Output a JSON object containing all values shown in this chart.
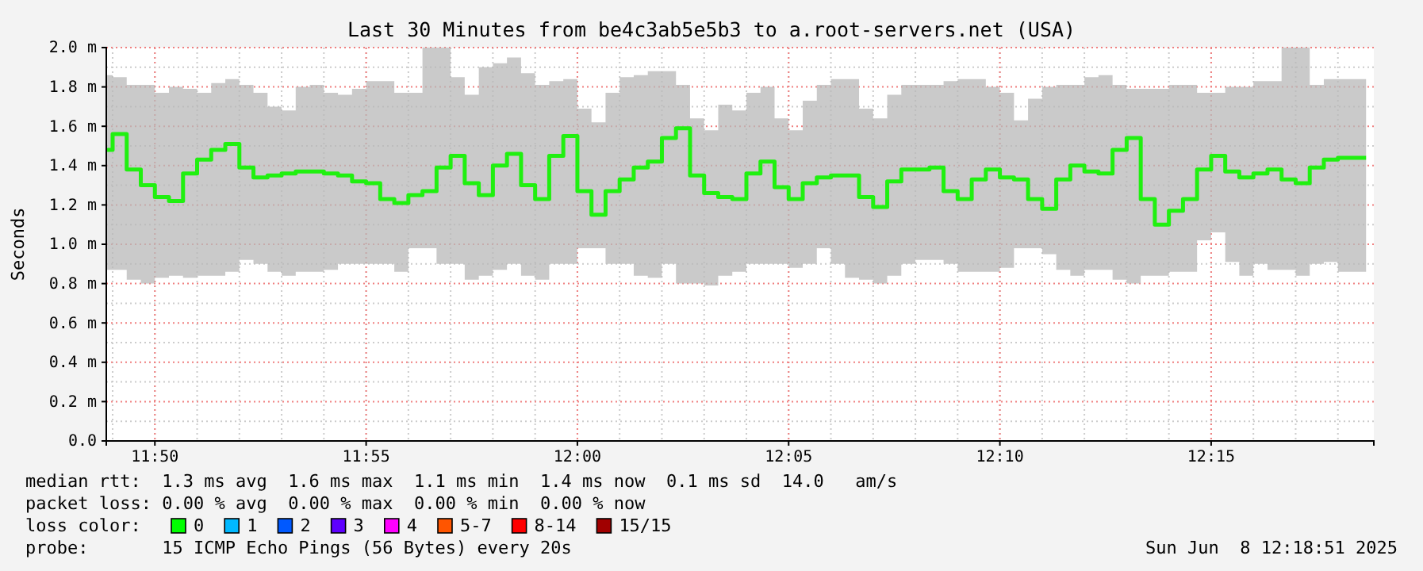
{
  "chart_data": {
    "type": "step",
    "title": "Last 30 Minutes from be4c3ab5e5b3 to a.root-servers.net (USA)",
    "ylabel": "Seconds",
    "x": [
      "2025-06-08T11:48:51",
      "2025-06-08T11:49:00",
      "2025-06-08T11:49:20",
      "2025-06-08T11:49:40",
      "2025-06-08T11:50:00",
      "2025-06-08T11:50:20",
      "2025-06-08T11:50:40",
      "2025-06-08T11:51:00",
      "2025-06-08T11:51:20",
      "2025-06-08T11:51:40",
      "2025-06-08T11:52:00",
      "2025-06-08T11:52:20",
      "2025-06-08T11:52:40",
      "2025-06-08T11:53:00",
      "2025-06-08T11:53:20",
      "2025-06-08T11:53:40",
      "2025-06-08T11:54:00",
      "2025-06-08T11:54:20",
      "2025-06-08T11:54:40",
      "2025-06-08T11:55:00",
      "2025-06-08T11:55:20",
      "2025-06-08T11:55:40",
      "2025-06-08T11:56:00",
      "2025-06-08T11:56:20",
      "2025-06-08T11:56:40",
      "2025-06-08T11:57:00",
      "2025-06-08T11:57:20",
      "2025-06-08T11:57:40",
      "2025-06-08T11:58:00",
      "2025-06-08T11:58:20",
      "2025-06-08T11:58:40",
      "2025-06-08T11:59:00",
      "2025-06-08T11:59:20",
      "2025-06-08T11:59:40",
      "2025-06-08T12:00:00",
      "2025-06-08T12:00:20",
      "2025-06-08T12:00:40",
      "2025-06-08T12:01:00",
      "2025-06-08T12:01:20",
      "2025-06-08T12:01:40",
      "2025-06-08T12:02:00",
      "2025-06-08T12:02:20",
      "2025-06-08T12:02:40",
      "2025-06-08T12:03:00",
      "2025-06-08T12:03:20",
      "2025-06-08T12:03:40",
      "2025-06-08T12:04:00",
      "2025-06-08T12:04:20",
      "2025-06-08T12:04:40",
      "2025-06-08T12:05:00",
      "2025-06-08T12:05:20",
      "2025-06-08T12:05:40",
      "2025-06-08T12:06:00",
      "2025-06-08T12:06:20",
      "2025-06-08T12:06:40",
      "2025-06-08T12:07:00",
      "2025-06-08T12:07:20",
      "2025-06-08T12:07:40",
      "2025-06-08T12:08:00",
      "2025-06-08T12:08:20",
      "2025-06-08T12:08:40",
      "2025-06-08T12:09:00",
      "2025-06-08T12:09:20",
      "2025-06-08T12:09:40",
      "2025-06-08T12:10:00",
      "2025-06-08T12:10:20",
      "2025-06-08T12:10:40",
      "2025-06-08T12:11:00",
      "2025-06-08T12:11:20",
      "2025-06-08T12:11:40",
      "2025-06-08T12:12:00",
      "2025-06-08T12:12:20",
      "2025-06-08T12:12:40",
      "2025-06-08T12:13:00",
      "2025-06-08T12:13:20",
      "2025-06-08T12:13:40",
      "2025-06-08T12:14:00",
      "2025-06-08T12:14:20",
      "2025-06-08T12:14:40",
      "2025-06-08T12:15:00",
      "2025-06-08T12:15:20",
      "2025-06-08T12:15:40",
      "2025-06-08T12:16:00",
      "2025-06-08T12:16:20",
      "2025-06-08T12:16:40",
      "2025-06-08T12:17:00",
      "2025-06-08T12:17:20",
      "2025-06-08T12:17:40",
      "2025-06-08T12:18:00",
      "2025-06-08T12:18:20",
      "2025-06-08T12:18:40"
    ],
    "series": [
      {
        "color": "#20f010",
        "values": [
          1.48,
          1.56,
          1.38,
          1.3,
          1.24,
          1.22,
          1.36,
          1.43,
          1.48,
          1.51,
          1.39,
          1.34,
          1.35,
          1.36,
          1.37,
          1.37,
          1.36,
          1.35,
          1.32,
          1.31,
          1.23,
          1.21,
          1.25,
          1.27,
          1.39,
          1.45,
          1.31,
          1.25,
          1.4,
          1.46,
          1.3,
          1.23,
          1.45,
          1.55,
          1.27,
          1.15,
          1.27,
          1.33,
          1.39,
          1.42,
          1.54,
          1.59,
          1.35,
          1.26,
          1.24,
          1.23,
          1.36,
          1.42,
          1.29,
          1.23,
          1.31,
          1.34,
          1.35,
          1.35,
          1.24,
          1.19,
          1.32,
          1.38,
          1.38,
          1.39,
          1.27,
          1.23,
          1.33,
          1.38,
          1.34,
          1.33,
          1.23,
          1.18,
          1.33,
          1.4,
          1.37,
          1.36,
          1.48,
          1.54,
          1.23,
          1.1,
          1.17,
          1.23,
          1.38,
          1.45,
          1.37,
          1.34,
          1.36,
          1.38,
          1.33,
          1.31,
          1.39,
          1.43,
          1.44,
          1.44,
          1.44
        ],
        "upper": [
          1.86,
          1.85,
          1.81,
          1.81,
          1.77,
          1.8,
          1.79,
          1.77,
          1.82,
          1.84,
          1.81,
          1.77,
          1.7,
          1.68,
          1.8,
          1.81,
          1.77,
          1.76,
          1.79,
          1.83,
          1.83,
          1.77,
          1.77,
          2.0,
          2.0,
          1.85,
          1.76,
          1.9,
          1.92,
          1.95,
          1.87,
          1.81,
          1.83,
          1.84,
          1.69,
          1.62,
          1.77,
          1.85,
          1.86,
          1.88,
          1.88,
          1.81,
          1.64,
          1.58,
          1.71,
          1.68,
          1.77,
          1.8,
          1.64,
          1.58,
          1.73,
          1.81,
          1.84,
          1.84,
          1.69,
          1.64,
          1.76,
          1.81,
          1.81,
          1.81,
          1.83,
          1.84,
          1.84,
          1.8,
          1.77,
          1.63,
          1.74,
          1.8,
          1.81,
          1.81,
          1.85,
          1.86,
          1.81,
          1.79,
          1.79,
          1.79,
          1.81,
          1.81,
          1.77,
          1.77,
          1.8,
          1.8,
          1.83,
          1.83,
          2.0,
          2.0,
          1.81,
          1.84,
          1.84,
          1.84,
          1.84
        ],
        "lower": [
          0.87,
          0.87,
          0.82,
          0.8,
          0.83,
          0.84,
          0.83,
          0.84,
          0.84,
          0.86,
          0.92,
          0.9,
          0.86,
          0.84,
          0.86,
          0.86,
          0.87,
          0.9,
          0.9,
          0.9,
          0.9,
          0.86,
          0.98,
          0.98,
          0.9,
          0.9,
          0.82,
          0.84,
          0.87,
          0.9,
          0.84,
          0.82,
          0.9,
          0.9,
          0.98,
          0.98,
          0.9,
          0.9,
          0.84,
          0.83,
          0.9,
          0.8,
          0.8,
          0.79,
          0.84,
          0.86,
          0.9,
          0.9,
          0.9,
          0.88,
          0.9,
          0.98,
          0.9,
          0.83,
          0.82,
          0.8,
          0.84,
          0.9,
          0.92,
          0.92,
          0.9,
          0.86,
          0.86,
          0.86,
          0.88,
          0.98,
          0.98,
          0.95,
          0.87,
          0.84,
          0.87,
          0.87,
          0.82,
          0.8,
          0.84,
          0.84,
          0.86,
          0.86,
          1.02,
          1.06,
          0.91,
          0.84,
          0.9,
          0.87,
          0.87,
          0.84,
          0.9,
          0.91,
          0.86,
          0.86,
          0.86
        ]
      }
    ],
    "xlim": [
      "2025-06-08T11:48:51",
      "2025-06-08T12:18:51"
    ],
    "xticks": [
      {
        "value": "2025-06-08T11:50:00",
        "label": "11:50"
      },
      {
        "value": "2025-06-08T11:55:00",
        "label": "11:55"
      },
      {
        "value": "2025-06-08T12:00:00",
        "label": "12:00"
      },
      {
        "value": "2025-06-08T12:05:00",
        "label": "12:05"
      },
      {
        "value": "2025-06-08T12:10:00",
        "label": "12:10"
      },
      {
        "value": "2025-06-08T12:15:00",
        "label": "12:15"
      }
    ],
    "ylim": [
      0,
      2.0
    ],
    "yticks": [
      {
        "value": 0,
        "label": "0.0"
      },
      {
        "value": 0.2,
        "label": "0.2 m"
      },
      {
        "value": 0.4,
        "label": "0.4 m"
      },
      {
        "value": 0.6,
        "label": "0.6 m"
      },
      {
        "value": 0.8,
        "label": "0.8 m"
      },
      {
        "value": 1.0,
        "label": "1.0 m"
      },
      {
        "value": 1.2,
        "label": "1.2 m"
      },
      {
        "value": 1.4,
        "label": "1.4 m"
      },
      {
        "value": 1.6,
        "label": "1.6 m"
      },
      {
        "value": 1.8,
        "label": "1.8 m"
      },
      {
        "value": 2.0,
        "label": "2.0 m"
      }
    ],
    "grid": true,
    "annotations": [
      "median rtt:  1.3 ms avg  1.6 ms max  1.1 ms min  1.4 ms now  0.1 ms sd  14.0   am/s",
      "packet loss: 0.00 % avg  0.00 % max  0.00 % min  0.00 % now",
      "loss color:",
      "0",
      "1",
      "2",
      "3",
      "4",
      "5-7",
      "8-14",
      "15/15",
      "probe:       15 ICMP Echo Pings (56 Bytes) every 20s",
      "Sun Jun  8 12:18:51 2025"
    ]
  }
}
